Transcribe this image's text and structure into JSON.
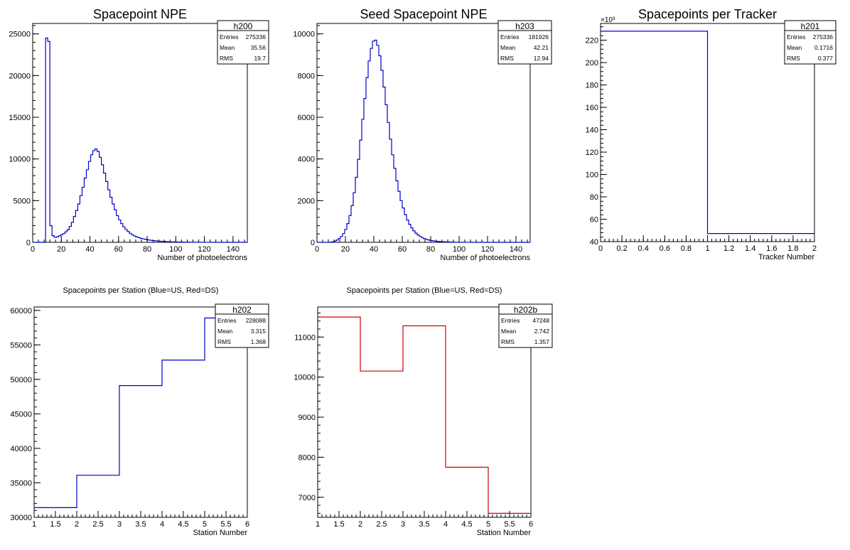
{
  "chart_data": [
    {
      "type": "histogram",
      "title": "Spacepoint NPE",
      "xlabel": "Number of photoelectrons",
      "ylabel": "",
      "xlim": [
        0,
        150
      ],
      "ylim": [
        0,
        26250
      ],
      "xticks": [
        0,
        20,
        40,
        60,
        80,
        100,
        120,
        140
      ],
      "yticks": [
        0,
        5000,
        10000,
        15000,
        20000,
        25000
      ],
      "ytick_multiplier": "",
      "stats": {
        "name": "h200",
        "rows": [
          [
            "Entries",
            "275336"
          ],
          [
            "Mean",
            "35.56"
          ],
          [
            "RMS",
            "19.7"
          ]
        ]
      },
      "series": [
        {
          "color": "#0000cc",
          "bin_width": 1.5,
          "x_start": 0,
          "values": [
            0,
            0,
            0,
            0,
            0,
            0,
            24500,
            24100,
            2000,
            800,
            600,
            650,
            780,
            900,
            1050,
            1250,
            1500,
            1900,
            2400,
            3100,
            3800,
            4600,
            5600,
            6600,
            7700,
            8700,
            9700,
            10500,
            11000,
            11200,
            10900,
            10200,
            9300,
            8300,
            7300,
            6300,
            5400,
            4600,
            3900,
            3200,
            2700,
            2250,
            1850,
            1550,
            1300,
            1080,
            900,
            760,
            650,
            560,
            480,
            420,
            360,
            310,
            270,
            230,
            200,
            170,
            150,
            130,
            110,
            95,
            80,
            70,
            60,
            50,
            45,
            40,
            35,
            30,
            25,
            22,
            20,
            18,
            16,
            14,
            12,
            10,
            8,
            6,
            5,
            4,
            3,
            2,
            0,
            0,
            0,
            0,
            0,
            0,
            0,
            0,
            0,
            0,
            0,
            0,
            0,
            0,
            0,
            0
          ]
        }
      ]
    },
    {
      "type": "histogram",
      "title": "Seed Spacepoint NPE",
      "xlabel": "Number of photoelectrons",
      "ylabel": "",
      "xlim": [
        0,
        150
      ],
      "ylim": [
        0,
        10500
      ],
      "xticks": [
        0,
        20,
        40,
        60,
        80,
        100,
        120,
        140
      ],
      "yticks": [
        0,
        2000,
        4000,
        6000,
        8000,
        10000
      ],
      "ytick_multiplier": "",
      "stats": {
        "name": "h203",
        "rows": [
          [
            "Entries",
            "181926"
          ],
          [
            "Mean",
            "42.21"
          ],
          [
            "RMS",
            "12.94"
          ]
        ]
      },
      "series": [
        {
          "color": "#0000cc",
          "bin_width": 1.5,
          "x_start": 0,
          "values": [
            0,
            0,
            0,
            0,
            0,
            0,
            10,
            30,
            60,
            110,
            180,
            280,
            420,
            620,
            900,
            1280,
            1760,
            2380,
            3120,
            3980,
            4900,
            5900,
            6900,
            7900,
            8700,
            9300,
            9650,
            9700,
            9450,
            8950,
            8250,
            7450,
            6600,
            5750,
            4950,
            4200,
            3550,
            2950,
            2450,
            2000,
            1650,
            1330,
            1070,
            860,
            690,
            550,
            440,
            350,
            280,
            220,
            175,
            140,
            110,
            90,
            72,
            58,
            47,
            38,
            31,
            25,
            20,
            16,
            13,
            11,
            9,
            7,
            6,
            5,
            4,
            3,
            2,
            2,
            1,
            1,
            0,
            0,
            0,
            0,
            0,
            0,
            0,
            0,
            0,
            0,
            0,
            0,
            0,
            0,
            0,
            0,
            0,
            0,
            0,
            0,
            0,
            0,
            0,
            0,
            0,
            0
          ]
        }
      ]
    },
    {
      "type": "histogram",
      "title": "Spacepoints per Tracker",
      "xlabel": "Tracker Number",
      "ylabel": "",
      "xlim": [
        0,
        2
      ],
      "ylim": [
        40,
        235
      ],
      "xticks": [
        0,
        0.2,
        0.4,
        0.6,
        0.8,
        1,
        1.2,
        1.4,
        1.6,
        1.8,
        2
      ],
      "yticks": [
        40,
        60,
        80,
        100,
        120,
        140,
        160,
        180,
        200,
        220
      ],
      "ytick_multiplier": "×10³",
      "stats": {
        "name": "h201",
        "rows": [
          [
            "Entries",
            "275336"
          ],
          [
            "Mean",
            "0.1716"
          ],
          [
            "RMS",
            "0.377"
          ]
        ]
      },
      "series": [
        {
          "color": "#0000cc",
          "bin_width": 1,
          "x_start": 0,
          "values": [
            228.1,
            47.2
          ]
        }
      ]
    },
    {
      "type": "histogram",
      "title": "Spacepoints per Station (Blue=US, Red=DS)",
      "xlabel": "Station Number",
      "ylabel": "",
      "xlim": [
        1,
        6
      ],
      "ylim": [
        30000,
        60500
      ],
      "xticks": [
        1,
        1.5,
        2,
        2.5,
        3,
        3.5,
        4,
        4.5,
        5,
        5.5,
        6
      ],
      "yticks": [
        30000,
        35000,
        40000,
        45000,
        50000,
        55000,
        60000
      ],
      "ytick_multiplier": "",
      "stats": {
        "name": "h202",
        "rows": [
          [
            "Entries",
            "228088"
          ],
          [
            "Mean",
            "3.315"
          ],
          [
            "RMS",
            "1.368"
          ]
        ]
      },
      "series": [
        {
          "color": "#0000cc",
          "bin_width": 1,
          "x_start": 1,
          "values": [
            31400,
            36100,
            49100,
            52800,
            58900
          ]
        }
      ]
    },
    {
      "type": "histogram",
      "title": "Spacepoints per Station (Blue=US, Red=DS)",
      "xlabel": "Station Number",
      "ylabel": "",
      "xlim": [
        1,
        6
      ],
      "ylim": [
        6500,
        11750
      ],
      "xticks": [
        1,
        1.5,
        2,
        2.5,
        3,
        3.5,
        4,
        4.5,
        5,
        5.5,
        6
      ],
      "yticks": [
        7000,
        8000,
        9000,
        10000,
        11000
      ],
      "ytick_multiplier": "",
      "stats": {
        "name": "h202b",
        "rows": [
          [
            "Entries",
            "47248"
          ],
          [
            "Mean",
            "2.742"
          ],
          [
            "RMS",
            "1.357"
          ]
        ]
      },
      "series": [
        {
          "color": "#cc0000",
          "bin_width": 1,
          "x_start": 1,
          "values": [
            11500,
            10150,
            11280,
            7750,
            6600
          ]
        }
      ]
    }
  ]
}
